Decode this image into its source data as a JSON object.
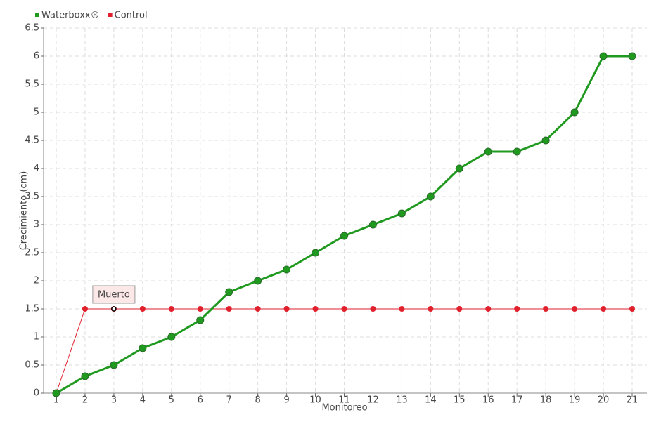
{
  "chart_data": {
    "type": "line",
    "y_label": "Crecimiento (cm)",
    "x_label": "Monitoreo",
    "categories": [
      "1",
      "2",
      "3",
      "4",
      "5",
      "6",
      "7",
      "8",
      "9",
      "10",
      "11",
      "12",
      "13",
      "14",
      "15",
      "16",
      "17",
      "18",
      "19",
      "20",
      "21"
    ],
    "series": [
      {
        "name": "Waterboxx®",
        "color": "#1f9a1f",
        "values": [
          0,
          0.3,
          0.5,
          0.8,
          1.0,
          1.3,
          1.8,
          2.0,
          2.2,
          2.5,
          2.8,
          3.0,
          3.2,
          3.5,
          4.0,
          4.3,
          4.3,
          4.5,
          5.0,
          6.0,
          6.0
        ]
      },
      {
        "name": "Control",
        "color": "#e0202c",
        "values": [
          0,
          1.5,
          1.5,
          1.5,
          1.5,
          1.5,
          1.5,
          1.5,
          1.5,
          1.5,
          1.5,
          1.5,
          1.5,
          1.5,
          1.5,
          1.5,
          1.5,
          1.5,
          1.5,
          1.5,
          1.5
        ]
      }
    ],
    "annotation": {
      "text": "Muerto",
      "category": "3",
      "series": "Control"
    },
    "ylim": [
      0,
      6.5
    ],
    "yticks": [
      0,
      0.5,
      1,
      1.5,
      2,
      2.5,
      3,
      3.5,
      4,
      4.5,
      5,
      5.5,
      6,
      6.5
    ],
    "grid": true,
    "legend": "top-left"
  }
}
